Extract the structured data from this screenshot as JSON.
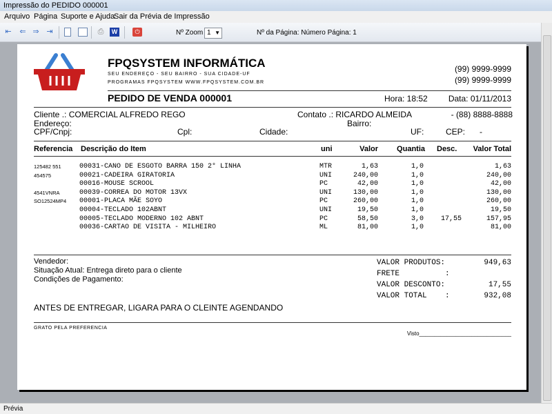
{
  "window": {
    "title": "Impressão do PEDIDO 000001"
  },
  "menu": [
    "Arquivo",
    "Página",
    "Suporte e Ajuda",
    "Sair da Prévia de Impressão"
  ],
  "toolbar": {
    "zoom_label": "Nº Zoom",
    "zoom_value": "1",
    "page_label": "Nº da Página: Número Página: 1"
  },
  "company": {
    "name": "FPQSYSTEM INFORMÁTICA",
    "address": "SEU ENDEREÇO - SEU BAIRRO - SUA CIDADE-UF",
    "site": "PROGRAMAS FPQSYSTEM  WWW.FPQSYSTEM.COM.BR",
    "phone1": "(99) 9999-9999",
    "phone2": "(99) 9999-9999"
  },
  "order": {
    "title": "PEDIDO DE VENDA 000001",
    "time": "Hora: 18:52",
    "date": "Data: 01/11/2013"
  },
  "client": {
    "cliente": "Cliente    .: COMERCIAL ALFREDO REGO",
    "contato": "Contato .: RICARDO ALMEIDA",
    "phone": "- (88) 8888-8888",
    "endereco": "Endereço:",
    "bairro": "Bairro:",
    "cpf": "CPF/Cnpj:",
    "cpl": "Cpl:",
    "cidade": "Cidade:",
    "uf": "UF:",
    "cep": "CEP:",
    "cep_value": "-"
  },
  "table": {
    "headers": [
      "Referencia",
      "Descrição do Item",
      "uni",
      "Valor",
      "Quantia",
      "Desc.",
      "Valor Total"
    ],
    "rows": [
      {
        "ref": "125482 551",
        "desc": "00031-CANO DE ESGOTO BARRA 150 2° LINHA",
        "uni": "MTR",
        "valor": "1,63",
        "qtd": "1,0",
        "disc": "",
        "total": "1,63"
      },
      {
        "ref": "454575",
        "desc": "00021-CADEIRA GIRATORIA",
        "uni": "UNI",
        "valor": "240,00",
        "qtd": "1,0",
        "disc": "",
        "total": "240,00"
      },
      {
        "ref": "",
        "desc": "00016-MOUSE SCROOL",
        "uni": "PC",
        "valor": "42,00",
        "qtd": "1,0",
        "disc": "",
        "total": "42,00"
      },
      {
        "ref": "4541VNRA",
        "desc": "00039-CORREA DO MOTOR 13VX",
        "uni": "UNI",
        "valor": "130,00",
        "qtd": "1,0",
        "disc": "",
        "total": "130,00"
      },
      {
        "ref": "SO12524MP4",
        "desc": "00001-PLACA MÃE SOYO",
        "uni": "PC",
        "valor": "260,00",
        "qtd": "1,0",
        "disc": "",
        "total": "260,00"
      },
      {
        "ref": "",
        "desc": "00004-TECLADO 102ABNT",
        "uni": "UNI",
        "valor": "19,50",
        "qtd": "1,0",
        "disc": "",
        "total": "19,50"
      },
      {
        "ref": "",
        "desc": "00005-TECLADO MODERNO 102 ABNT",
        "uni": "PC",
        "valor": "58,50",
        "qtd": "3,0",
        "disc": "17,55",
        "total": "157,95"
      },
      {
        "ref": "",
        "desc": "00036-CARTAO DE VISITA - MILHEIRO",
        "uni": "ML",
        "valor": "81,00",
        "qtd": "1,0",
        "disc": "",
        "total": "81,00"
      }
    ]
  },
  "footer": {
    "vendedor": "Vendedor:",
    "situacao": "Situação Atual: Entrega direto para o cliente",
    "condicoes": "Condições de Pagamento:",
    "obs": "ANTES DE ENTREGAR, LIGARA PARA O CLEINTE AGENDANDO",
    "grato": "GRATO PELA PREFERENCIA",
    "visto": "Visto______________________________"
  },
  "totals": [
    {
      "label": "VALOR PRODUTOS:",
      "value": "949,63"
    },
    {
      "label": "FRETE          :",
      "value": ""
    },
    {
      "label": "VALOR DESCONTO:",
      "value": "17,55"
    },
    {
      "label": "VALOR TOTAL    :",
      "value": "932,08"
    }
  ],
  "status": "Prévia",
  "colors": {
    "logo": "#c81e1e",
    "handle": "#3b7fd1"
  }
}
